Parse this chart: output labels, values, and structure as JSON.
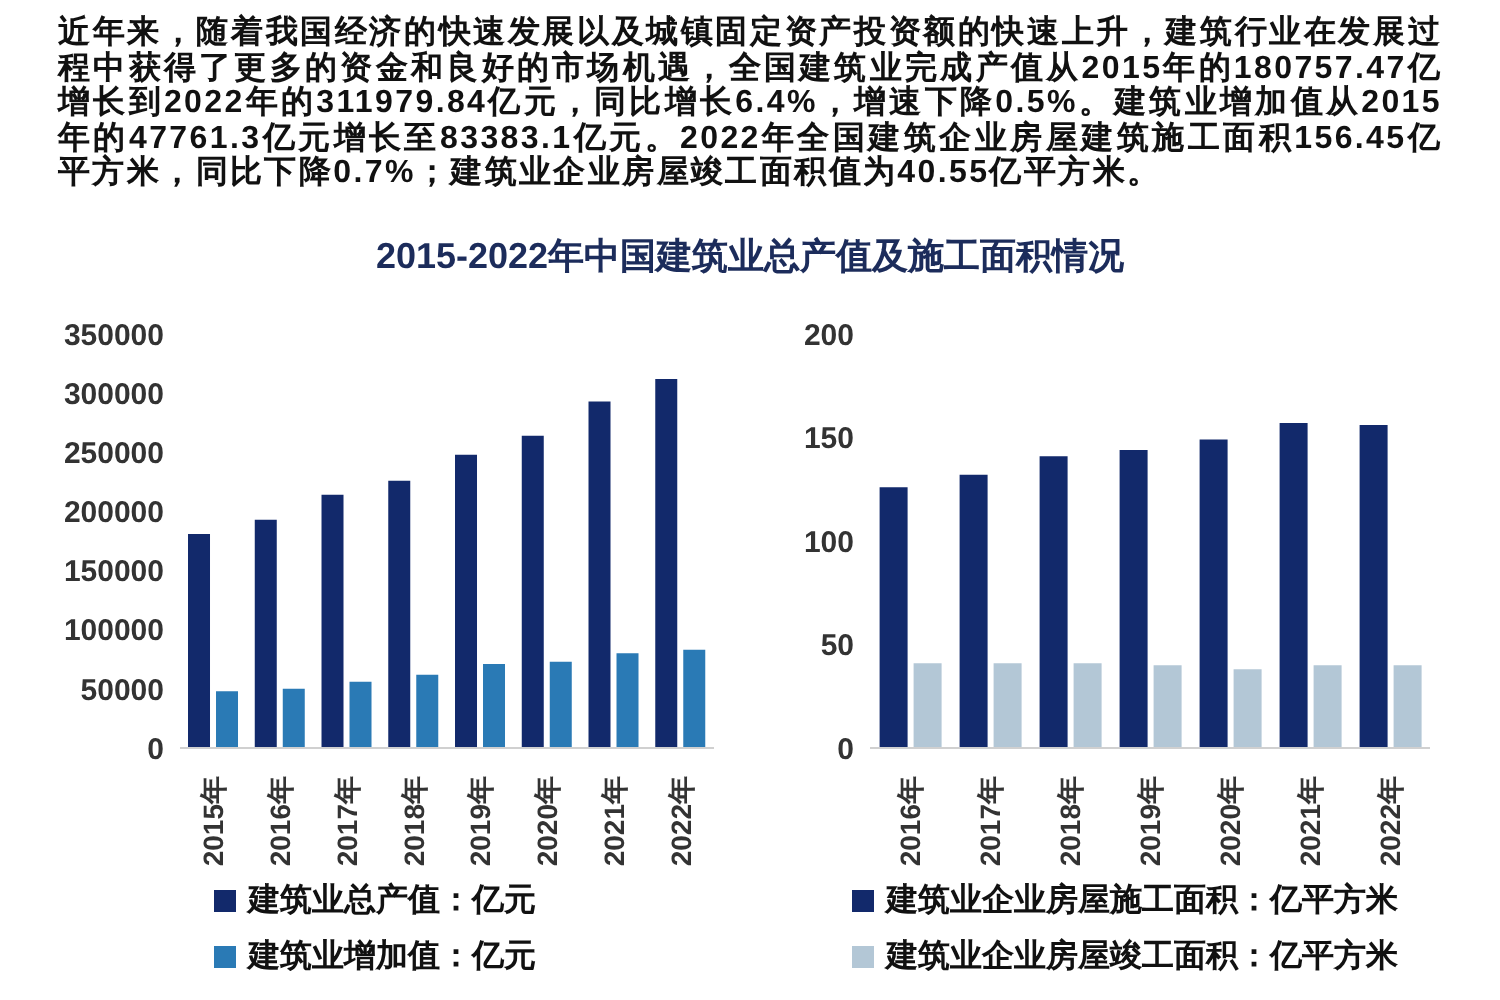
{
  "chart_data": [
    {
      "type": "other",
      "title": "2015-2022年中国建筑业总产值及施工面积情况",
      "annotations": [
        "近年来，随着我国经济的快速发展以及城镇固定资产投资额的快速上升，建筑行业在发展过程中获得了更多的资金和良好的市场机遇，全国建筑业完成产值从2015年的180757.47亿增长到2022年的311979.84亿元，同比增长6.4%，增速下降0.5%。建筑业增加值从2015年的47761.3亿元增长至83383.1亿元。2022年全国建筑企业房屋建筑施工面积156.45亿平方米，同比下降0.7%；建筑业企业房屋竣工面积值为40.55亿平方米。"
      ]
    },
    {
      "type": "bar",
      "categories": [
        "2015年",
        "2016年",
        "2017年",
        "2018年",
        "2019年",
        "2020年",
        "2021年",
        "2022年"
      ],
      "series": [
        {
          "name": "建筑业总产值：亿元",
          "color": "#12296b",
          "values": [
            181000,
            193000,
            214000,
            226000,
            248000,
            264000,
            293000,
            312000
          ]
        },
        {
          "name": "建筑业增加值：亿元",
          "color": "#2a7ab5",
          "values": [
            48000,
            50000,
            56000,
            62000,
            71000,
            73000,
            80000,
            83000
          ]
        }
      ],
      "ylim": [
        0,
        350000
      ],
      "yticks": [
        0,
        50000,
        100000,
        150000,
        200000,
        250000,
        300000,
        350000
      ],
      "legend": "bottom"
    },
    {
      "type": "bar",
      "categories": [
        "2016年",
        "2017年",
        "2018年",
        "2019年",
        "2020年",
        "2021年",
        "2022年"
      ],
      "series": [
        {
          "name": "建筑业企业房屋施工面积：亿平方米",
          "color": "#12296b",
          "values": [
            126,
            132,
            141,
            144,
            149,
            157,
            156
          ]
        },
        {
          "name": "建筑业企业房屋竣工面积：亿平方米",
          "color": "#b3c7d6",
          "values": [
            41,
            41,
            41,
            40,
            38,
            40,
            40
          ]
        }
      ],
      "ylim": [
        0,
        200
      ],
      "yticks": [
        0,
        50,
        100,
        150,
        200
      ],
      "legend": "bottom"
    }
  ]
}
